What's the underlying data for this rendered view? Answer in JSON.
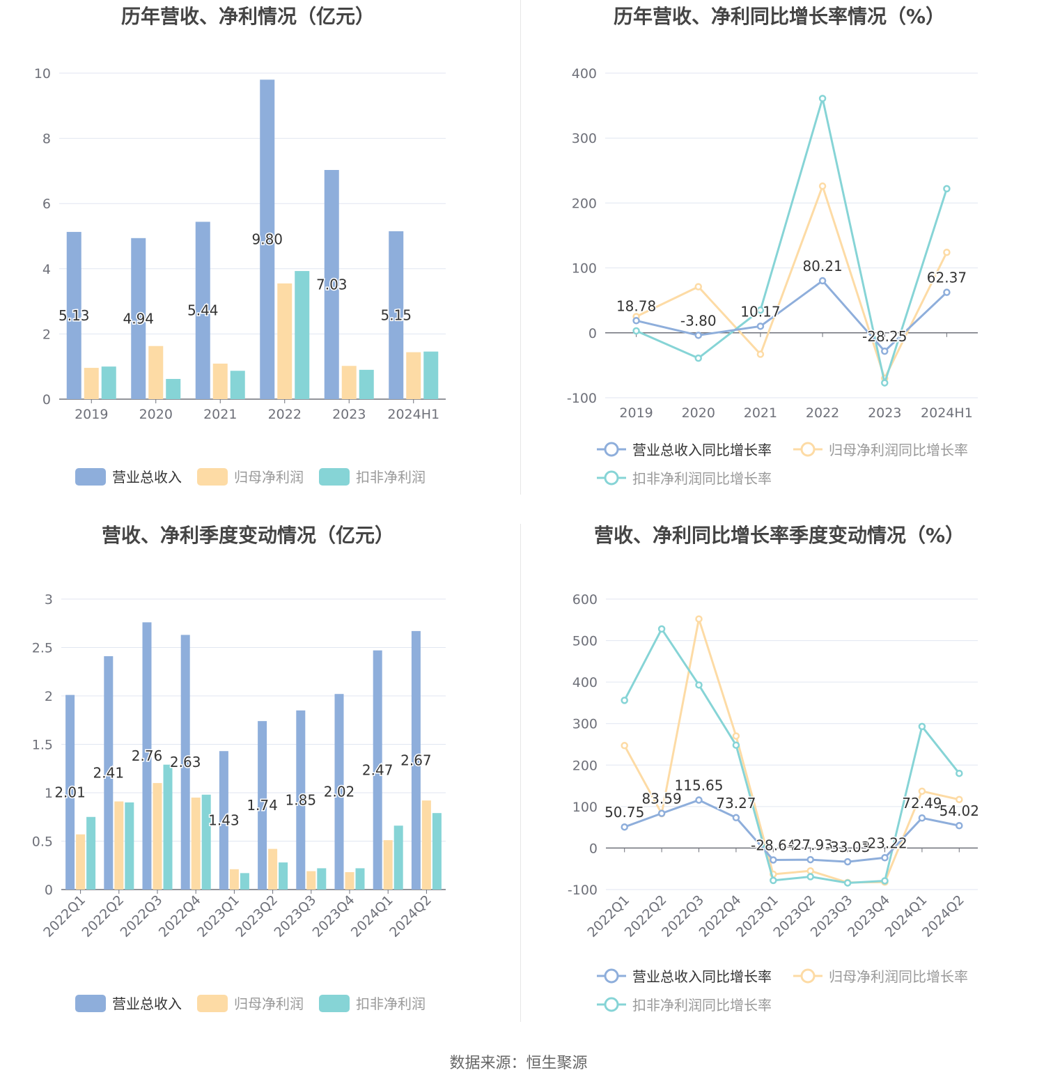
{
  "source": "数据来源：恒生聚源",
  "colors": {
    "revenue": "#8eaedb",
    "net_profit": "#fddba5",
    "deducted_profit": "#86d4d6"
  },
  "chart_data": [
    {
      "type": "bar",
      "title": "历年营收、净利情况（亿元）",
      "categories": [
        "2019",
        "2020",
        "2021",
        "2022",
        "2023",
        "2024H1"
      ],
      "ylim": [
        0,
        10
      ],
      "yticks": [
        0,
        2,
        4,
        6,
        8,
        10
      ],
      "grid": true,
      "legend_position": "bottom",
      "series": [
        {
          "name": "营业总收入",
          "values": [
            5.13,
            4.94,
            5.44,
            9.8,
            7.03,
            5.15
          ],
          "labels": [
            "5.13",
            "4.94",
            "5.44",
            "9.80",
            "7.03",
            "5.15"
          ]
        },
        {
          "name": "归母净利润",
          "values": [
            0.96,
            1.63,
            1.09,
            3.55,
            1.02,
            1.44
          ]
        },
        {
          "name": "扣非净利润",
          "values": [
            1.0,
            0.62,
            0.87,
            3.93,
            0.9,
            1.46
          ]
        }
      ]
    },
    {
      "type": "line",
      "title": "历年营收、净利同比增长率情况（%）",
      "categories": [
        "2019",
        "2020",
        "2021",
        "2022",
        "2023",
        "2024H1"
      ],
      "ylim": [
        -100,
        400
      ],
      "yticks": [
        -100,
        0,
        100,
        200,
        300,
        400
      ],
      "grid": true,
      "legend_position": "bottom",
      "series": [
        {
          "name": "营业总收入同比增长率",
          "values": [
            18.78,
            -3.8,
            10.17,
            80.21,
            -28.25,
            62.37
          ],
          "labels": [
            "18.78",
            "-3.80",
            "10.17",
            "80.21",
            "-28.25",
            "62.37"
          ]
        },
        {
          "name": "归母净利润同比增长率",
          "values": [
            25,
            71,
            -33,
            226,
            -70,
            124
          ]
        },
        {
          "name": "扣非净利润同比增长率",
          "values": [
            3,
            -39,
            35,
            361,
            -77,
            222
          ]
        }
      ]
    },
    {
      "type": "bar",
      "title": "营收、净利季度变动情况（亿元）",
      "categories": [
        "2022Q1",
        "2022Q2",
        "2022Q3",
        "2022Q4",
        "2023Q1",
        "2023Q2",
        "2023Q3",
        "2023Q4",
        "2024Q1",
        "2024Q2"
      ],
      "ylim": [
        0,
        3
      ],
      "yticks": [
        0,
        0.5,
        1,
        1.5,
        2,
        2.5,
        3
      ],
      "yticklabels": [
        "0",
        "0.5",
        "1",
        "1.5",
        "2",
        "2.5",
        "3"
      ],
      "grid": true,
      "legend_position": "bottom",
      "series": [
        {
          "name": "营业总收入",
          "values": [
            2.01,
            2.41,
            2.76,
            2.63,
            1.43,
            1.74,
            1.85,
            2.02,
            2.47,
            2.67
          ],
          "labels": [
            "2.01",
            "2.41",
            "2.76",
            "2.63",
            "1.43",
            "1.74",
            "1.85",
            "2.02",
            "2.47",
            "2.67"
          ]
        },
        {
          "name": "归母净利润",
          "values": [
            0.57,
            0.91,
            1.1,
            0.95,
            0.21,
            0.42,
            0.19,
            0.18,
            0.51,
            0.92
          ]
        },
        {
          "name": "扣非净利润",
          "values": [
            0.75,
            0.9,
            1.29,
            0.98,
            0.17,
            0.28,
            0.22,
            0.22,
            0.66,
            0.79
          ]
        }
      ]
    },
    {
      "type": "line",
      "title": "营收、净利同比增长率季度变动情况（%）",
      "categories": [
        "2022Q1",
        "2022Q2",
        "2022Q3",
        "2022Q4",
        "2023Q1",
        "2023Q2",
        "2023Q3",
        "2023Q4",
        "2024Q1",
        "2024Q2"
      ],
      "ylim": [
        -100,
        600
      ],
      "yticks": [
        -100,
        0,
        100,
        200,
        300,
        400,
        500,
        600
      ],
      "grid": true,
      "legend_position": "bottom",
      "series": [
        {
          "name": "营业总收入同比增长率",
          "values": [
            50.75,
            83.59,
            115.65,
            73.27,
            -28.64,
            -27.93,
            -33.03,
            -23.22,
            72.49,
            54.02
          ],
          "labels": [
            "50.75",
            "83.59",
            "115.65",
            "73.27",
            "-28.64",
            "-27.93",
            "-33.03",
            "-23.22",
            "72.49",
            "54.02"
          ]
        },
        {
          "name": "归母净利润同比增长率",
          "values": [
            247,
            83,
            552,
            270,
            -63,
            -55,
            -83,
            -82,
            137,
            117
          ]
        },
        {
          "name": "扣非净利润同比增长率",
          "values": [
            356,
            528,
            393,
            248,
            -78,
            -69,
            -84,
            -79,
            293,
            180
          ]
        }
      ]
    }
  ]
}
